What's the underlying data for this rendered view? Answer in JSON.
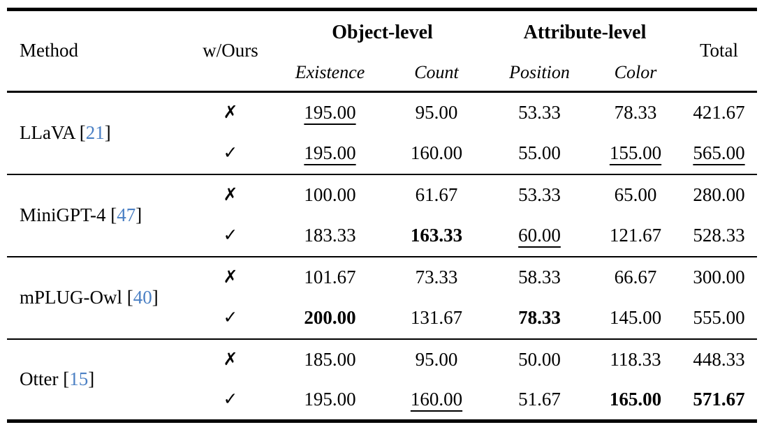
{
  "table": {
    "headers": {
      "method": "Method",
      "w_ours": "w/Ours",
      "groups": [
        {
          "label": "Object-level",
          "children": [
            "Existence",
            "Count"
          ]
        },
        {
          "label": "Attribute-level",
          "children": [
            "Position",
            "Color"
          ]
        }
      ],
      "total": "Total"
    },
    "punctuation": {
      "bracket_open": "[",
      "bracket_close": "]"
    },
    "colors": {
      "citation_number": "#4b80c4",
      "text": "#000000",
      "rule": "#000000"
    },
    "rows": [
      {
        "method": "LLaVA",
        "citation": "21",
        "variants": [
          {
            "mark": "✗",
            "values": [
              {
                "text": "195.00",
                "underline": true,
                "bold": false
              },
              {
                "text": "95.00",
                "underline": false,
                "bold": false
              },
              {
                "text": "53.33",
                "underline": false,
                "bold": false
              },
              {
                "text": "78.33",
                "underline": false,
                "bold": false
              },
              {
                "text": "421.67",
                "underline": false,
                "bold": false
              }
            ]
          },
          {
            "mark": "✓",
            "values": [
              {
                "text": "195.00",
                "underline": true,
                "bold": false
              },
              {
                "text": "160.00",
                "underline": false,
                "bold": false
              },
              {
                "text": "55.00",
                "underline": false,
                "bold": false
              },
              {
                "text": "155.00",
                "underline": true,
                "bold": false
              },
              {
                "text": "565.00",
                "underline": true,
                "bold": false
              }
            ]
          }
        ]
      },
      {
        "method": "MiniGPT-4",
        "citation": "47",
        "variants": [
          {
            "mark": "✗",
            "values": [
              {
                "text": "100.00",
                "underline": false,
                "bold": false
              },
              {
                "text": "61.67",
                "underline": false,
                "bold": false
              },
              {
                "text": "53.33",
                "underline": false,
                "bold": false
              },
              {
                "text": "65.00",
                "underline": false,
                "bold": false
              },
              {
                "text": "280.00",
                "underline": false,
                "bold": false
              }
            ]
          },
          {
            "mark": "✓",
            "values": [
              {
                "text": "183.33",
                "underline": false,
                "bold": false
              },
              {
                "text": "163.33",
                "underline": false,
                "bold": true
              },
              {
                "text": "60.00",
                "underline": true,
                "bold": false
              },
              {
                "text": "121.67",
                "underline": false,
                "bold": false
              },
              {
                "text": "528.33",
                "underline": false,
                "bold": false
              }
            ]
          }
        ]
      },
      {
        "method": "mPLUG-Owl",
        "citation": "40",
        "variants": [
          {
            "mark": "✗",
            "values": [
              {
                "text": "101.67",
                "underline": false,
                "bold": false
              },
              {
                "text": "73.33",
                "underline": false,
                "bold": false
              },
              {
                "text": "58.33",
                "underline": false,
                "bold": false
              },
              {
                "text": "66.67",
                "underline": false,
                "bold": false
              },
              {
                "text": "300.00",
                "underline": false,
                "bold": false
              }
            ]
          },
          {
            "mark": "✓",
            "values": [
              {
                "text": "200.00",
                "underline": false,
                "bold": true
              },
              {
                "text": "131.67",
                "underline": false,
                "bold": false
              },
              {
                "text": "78.33",
                "underline": false,
                "bold": true
              },
              {
                "text": "145.00",
                "underline": false,
                "bold": false
              },
              {
                "text": "555.00",
                "underline": false,
                "bold": false
              }
            ]
          }
        ]
      },
      {
        "method": "Otter",
        "citation": "15",
        "variants": [
          {
            "mark": "✗",
            "values": [
              {
                "text": "185.00",
                "underline": false,
                "bold": false
              },
              {
                "text": "95.00",
                "underline": false,
                "bold": false
              },
              {
                "text": "50.00",
                "underline": false,
                "bold": false
              },
              {
                "text": "118.33",
                "underline": false,
                "bold": false
              },
              {
                "text": "448.33",
                "underline": false,
                "bold": false
              }
            ]
          },
          {
            "mark": "✓",
            "values": [
              {
                "text": "195.00",
                "underline": false,
                "bold": false
              },
              {
                "text": "160.00",
                "underline": true,
                "bold": false
              },
              {
                "text": "51.67",
                "underline": false,
                "bold": false
              },
              {
                "text": "165.00",
                "underline": false,
                "bold": true
              },
              {
                "text": "571.67",
                "underline": false,
                "bold": true
              }
            ]
          }
        ]
      }
    ]
  }
}
